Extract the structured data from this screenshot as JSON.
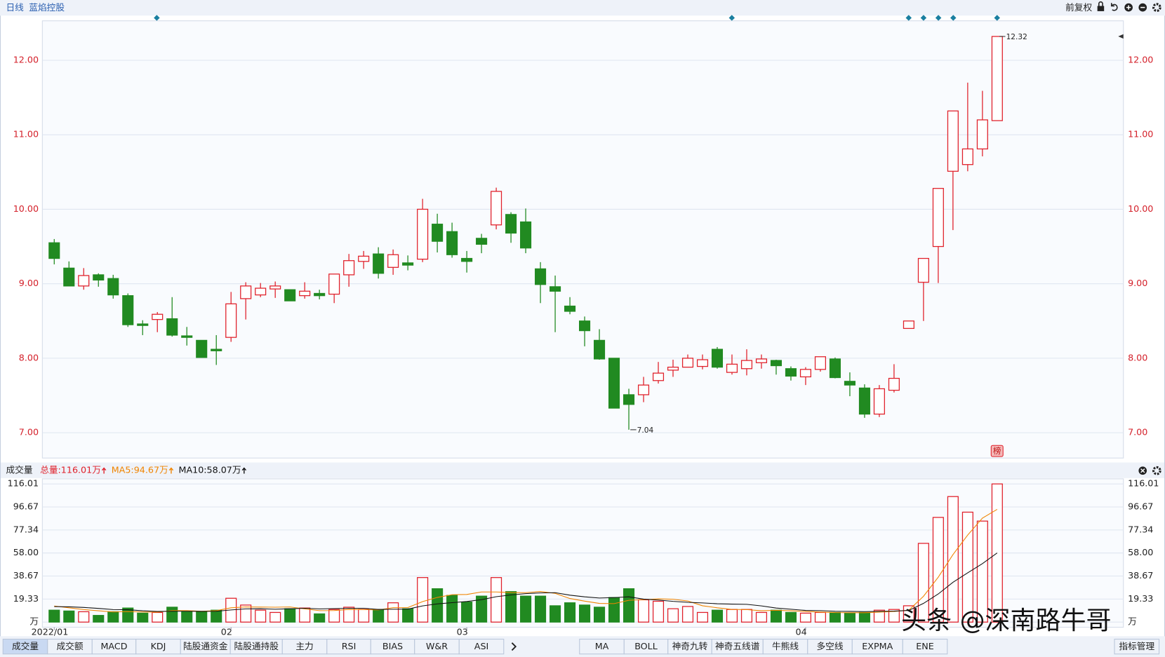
{
  "chart_data": [
    {
      "type": "candlestick",
      "title": "日线",
      "subtitle": "蓝焰控股",
      "adjust_label": "前复权",
      "badge": "榜",
      "categories": [
        "2022/01",
        null,
        null,
        null,
        null,
        null,
        null,
        null,
        null,
        null,
        null,
        null,
        "02",
        null,
        null,
        null,
        null,
        null,
        null,
        null,
        null,
        null,
        null,
        null,
        null,
        null,
        null,
        null,
        "03",
        null,
        null,
        null,
        null,
        null,
        null,
        null,
        null,
        null,
        null,
        null,
        null,
        null,
        null,
        null,
        null,
        null,
        null,
        null,
        null,
        null,
        null,
        "04",
        null,
        null,
        null,
        null,
        null,
        null,
        null,
        null,
        null,
        null,
        null,
        null,
        null
      ],
      "open": [
        9.55,
        9.21,
        8.97,
        9.12,
        9.07,
        8.84,
        8.46,
        8.52,
        8.53,
        8.3,
        8.24,
        8.12,
        8.28,
        8.8,
        8.85,
        8.93,
        8.92,
        8.84,
        8.87,
        8.86,
        9.12,
        9.3,
        9.4,
        9.22,
        9.28,
        9.33,
        9.8,
        9.7,
        9.34,
        9.61,
        9.79,
        9.93,
        9.83,
        9.2,
        8.96,
        8.7,
        8.5,
        8.24,
        8.0,
        7.51,
        7.51,
        7.7,
        7.84,
        7.88,
        7.89,
        8.12,
        7.81,
        7.86,
        7.94,
        7.97,
        7.86,
        7.75,
        7.85,
        7.99,
        7.69,
        7.6,
        7.25,
        7.57,
        8.4,
        9.02,
        9.5,
        10.51,
        10.6,
        10.81,
        11.19
      ],
      "high": [
        9.6,
        9.3,
        9.21,
        9.14,
        9.12,
        8.87,
        8.51,
        8.62,
        8.82,
        8.42,
        8.24,
        8.31,
        8.89,
        9.02,
        9.01,
        9.03,
        8.92,
        9.02,
        8.92,
        9.13,
        9.4,
        9.44,
        9.49,
        9.46,
        9.38,
        10.14,
        9.94,
        9.82,
        9.44,
        9.67,
        10.29,
        9.96,
        10.01,
        9.29,
        9.11,
        8.82,
        8.56,
        8.39,
        8.0,
        7.59,
        7.75,
        7.95,
        7.98,
        8.05,
        8.05,
        8.15,
        8.05,
        8.12,
        8.05,
        7.98,
        7.89,
        7.88,
        8.02,
        8.01,
        7.81,
        7.65,
        7.64,
        7.92,
        8.5,
        9.34,
        10.28,
        11.32,
        11.7,
        11.59,
        12.32
      ],
      "low": [
        9.26,
        8.97,
        8.92,
        8.96,
        8.8,
        8.42,
        8.31,
        8.35,
        8.29,
        8.17,
        8.01,
        7.91,
        8.22,
        8.52,
        8.82,
        8.81,
        8.77,
        8.8,
        8.79,
        8.74,
        8.96,
        9.2,
        9.07,
        9.12,
        9.18,
        9.29,
        9.42,
        9.35,
        9.15,
        9.41,
        9.73,
        9.55,
        9.41,
        8.74,
        8.35,
        8.59,
        8.16,
        7.98,
        7.33,
        7.04,
        7.41,
        7.66,
        7.75,
        7.88,
        7.85,
        7.86,
        7.78,
        7.77,
        7.86,
        7.78,
        7.7,
        7.64,
        7.82,
        7.73,
        7.49,
        7.2,
        7.21,
        7.54,
        8.4,
        8.5,
        9.01,
        9.72,
        10.51,
        10.71,
        11.19
      ],
      "close": [
        9.34,
        8.97,
        9.11,
        9.05,
        8.85,
        8.45,
        8.44,
        8.59,
        8.31,
        8.28,
        8.01,
        8.1,
        8.73,
        8.97,
        8.94,
        8.97,
        8.77,
        8.9,
        8.84,
        9.13,
        9.31,
        9.37,
        9.14,
        9.39,
        9.25,
        10.0,
        9.57,
        9.39,
        9.3,
        9.53,
        10.24,
        9.68,
        9.48,
        8.99,
        8.9,
        8.63,
        8.37,
        7.99,
        7.33,
        7.38,
        7.64,
        7.8,
        7.88,
        8.0,
        7.98,
        7.88,
        7.92,
        7.97,
        7.99,
        7.9,
        7.76,
        7.85,
        8.02,
        7.74,
        7.64,
        7.25,
        7.59,
        7.73,
        8.5,
        9.34,
        10.28,
        11.32,
        10.81,
        11.2,
        12.32
      ],
      "up_color": "#e0202a",
      "down_color": "#218a21",
      "ylim": [
        6.66,
        12.53
      ],
      "yticks": [
        {
          "value": 7,
          "label": "7.00"
        },
        {
          "value": 8,
          "label": "8.00"
        },
        {
          "value": 9,
          "label": "9.00"
        },
        {
          "value": 10,
          "label": "10.00"
        },
        {
          "value": 11,
          "label": "11.00"
        },
        {
          "value": 12,
          "label": "12.00"
        }
      ],
      "grid": true
    },
    {
      "type": "bar",
      "title": "成交量",
      "series": [
        {
          "name": "总量:116.01万",
          "color": "#e0202a",
          "values": [
            10,
            9.3,
            8.7,
            5.6,
            8.7,
            11.8,
            7.5,
            8.1,
            12.5,
            8.7,
            8.7,
            10,
            20,
            14.3,
            10,
            8.1,
            11.2,
            11.8,
            6.9,
            10.6,
            12.5,
            10.6,
            10.6,
            16.2,
            11.2,
            37.4,
            28,
            22.4,
            16.8,
            21.8,
            37.4,
            25.6,
            21.8,
            21.8,
            13.7,
            16.2,
            14.3,
            12.5,
            20.6,
            28,
            18.7,
            17.5,
            11.2,
            13.1,
            8.1,
            10,
            10.6,
            10.6,
            8.1,
            10,
            8.1,
            7.5,
            8.1,
            8.1,
            7.5,
            8.1,
            10,
            10.6,
            13.7,
            66.1,
            87.9,
            105.4,
            92.3,
            84.8,
            116.01
          ]
        },
        {
          "name": "MA5:94.67万",
          "color": "#f08400",
          "values": [
            13.5,
            12,
            10.5,
            9.5,
            8.5,
            8.8,
            8.5,
            8.3,
            9.7,
            9.7,
            9.1,
            9.6,
            12,
            12.7,
            12.6,
            12.5,
            12.7,
            11.1,
            9.6,
            9.7,
            10.6,
            10.5,
            10.2,
            12.1,
            12.2,
            17.2,
            20.7,
            23,
            23.2,
            25.3,
            25.3,
            24.8,
            24.7,
            25.7,
            24.1,
            19.8,
            17.6,
            15.7,
            15.5,
            18.3,
            18.8,
            19.5,
            19.2,
            17.7,
            13.7,
            12,
            10.6,
            10.5,
            9.5,
            9.9,
            9.5,
            8.9,
            8.4,
            8,
            7.9,
            7.9,
            8.4,
            8.9,
            10,
            21.7,
            37.7,
            56.7,
            73.1,
            87.3,
            94.67
          ]
        },
        {
          "name": "MA10:58.07万",
          "color": "#111111",
          "values": [
            13,
            12.8,
            12.3,
            11.5,
            10.5,
            10.4,
            9.5,
            8.9,
            9.1,
            9.1,
            9,
            9.1,
            10.2,
            11.1,
            11.2,
            10.8,
            11.2,
            11.6,
            11.1,
            11.3,
            11.6,
            11.6,
            10.6,
            10.8,
            10.9,
            13.6,
            15.3,
            16.3,
            17.3,
            18.8,
            21.3,
            22.8,
            23.9,
            24.5,
            24.7,
            22.6,
            21.2,
            20.2,
            20.6,
            21.2,
            19.3,
            18.5,
            17.4,
            16.6,
            16.1,
            15.4,
            15.1,
            14.9,
            13.6,
            11.8,
            10.8,
            9.8,
            9.6,
            9.1,
            9,
            8.8,
            9,
            9.2,
            9.8,
            15.7,
            23.6,
            33.4,
            41.4,
            49.1,
            58.07
          ]
        }
      ],
      "ylim": [
        0,
        120.3
      ],
      "yticks": [
        {
          "value": 0,
          "label": "万"
        },
        19.33,
        38.67,
        {
          "value": 58,
          "label": "58.00"
        },
        77.34,
        96.67,
        116.01
      ],
      "grid": true
    }
  ],
  "ui": {
    "indicator_tabs": [
      "成交量",
      "成交额",
      "MACD",
      "KDJ",
      "陆股通资金",
      "陆股通持股",
      "主力",
      "RSI",
      "BIAS",
      "W&R",
      "ASI"
    ],
    "overlay_tabs": [
      "MA",
      "BOLL",
      "神奇九转",
      "神奇五线谱",
      "牛熊线",
      "多空线",
      "EXPMA",
      "ENE"
    ],
    "manage": "指标管理",
    "watermark": "头条 @深南路牛哥"
  }
}
